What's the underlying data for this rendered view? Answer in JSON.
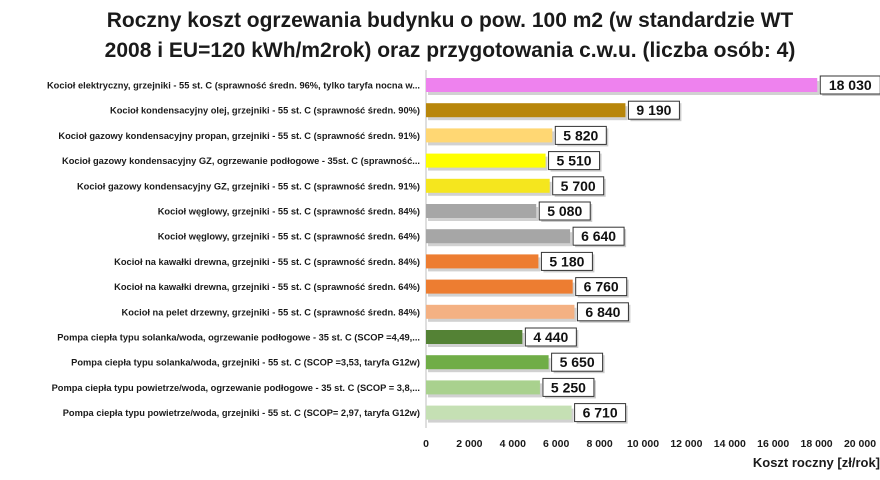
{
  "chart_data": {
    "type": "bar",
    "orientation": "horizontal",
    "title_line1": "Roczny koszt ogrzewania budynku  o pow. 100 m2 (w standardzie WT",
    "title_line2": "2008 i EU=120 kWh/m2rok) oraz przygotowania c.w.u. (liczba osób: 4)",
    "xlabel": "Koszt roczny [zł/rok]",
    "ylabel": "",
    "xlim": [
      0,
      20000
    ],
    "x_ticks": [
      "0",
      "2 000",
      "4 000",
      "6 000",
      "8 000",
      "10 000",
      "12 000",
      "14 000",
      "16 000",
      "18 000",
      "20 000"
    ],
    "grid": "none",
    "categories": [
      "Kocioł elektryczny,  grzejniki - 55 st. C  (sprawność średn. 96%, tylko taryfa nocna w...",
      "Kocioł kondensacyjny olej,  grzejniki - 55 st. C  (sprawność średn. 90%)",
      "Kocioł gazowy kondensacyjny propan, grzejniki - 55 st. C  (sprawność średn. 91%)",
      "Kocioł gazowy kondensacyjny GZ, ogrzewanie podłogowe - 35st. C   (sprawność...",
      "Kocioł gazowy kondensacyjny GZ, grzejniki - 55 st. C  (sprawność średn. 91%)",
      "Kocioł węglowy,  grzejniki - 55 st. C  (sprawność średn. 84%)",
      "Kocioł węglowy,  grzejniki - 55 st. C  (sprawność średn. 64%)",
      "Kocioł na kawałki drewna, grzejniki - 55 st. C (sprawność średn. 84%)",
      "Kocioł na kawałki drewna, grzejniki - 55 st. C  (sprawność średn. 64%)",
      "Kocioł na pelet drzewny, grzejniki - 55 st. C (sprawność średn. 84%)",
      "Pompa ciepła typu solanka/woda, ogrzewanie podłogowe - 35 st. C  (SCOP =4,49,...",
      "Pompa ciepła typu solanka/woda, grzejniki - 55 st. C (SCOP =3,53, taryfa G12w)",
      "Pompa ciepła typu powietrze/woda, ogrzewanie podłogowe - 35 st. C  (SCOP = 3,8,...",
      "Pompa ciepła typu powietrze/woda, grzejniki - 55 st. C (SCOP= 2,97, taryfa G12w)"
    ],
    "values": [
      18030,
      9190,
      5820,
      5510,
      5700,
      5080,
      6640,
      5180,
      6760,
      6840,
      4440,
      5650,
      5250,
      6710
    ],
    "value_labels": [
      "18 030",
      "9 190",
      "5 820",
      "5 510",
      "5 700",
      "5 080",
      "6 640",
      "5 180",
      "6 760",
      "6 840",
      "4 440",
      "5 650",
      "5 250",
      "6 710"
    ],
    "colors": [
      "#ee82ee",
      "#b8860b",
      "#ffd773",
      "#ffff00",
      "#f5e61e",
      "#a6a6a6",
      "#a6a6a6",
      "#ed7d31",
      "#ed7d31",
      "#f4b183",
      "#548235",
      "#70ad47",
      "#a9d18e",
      "#c5e0b4"
    ]
  }
}
